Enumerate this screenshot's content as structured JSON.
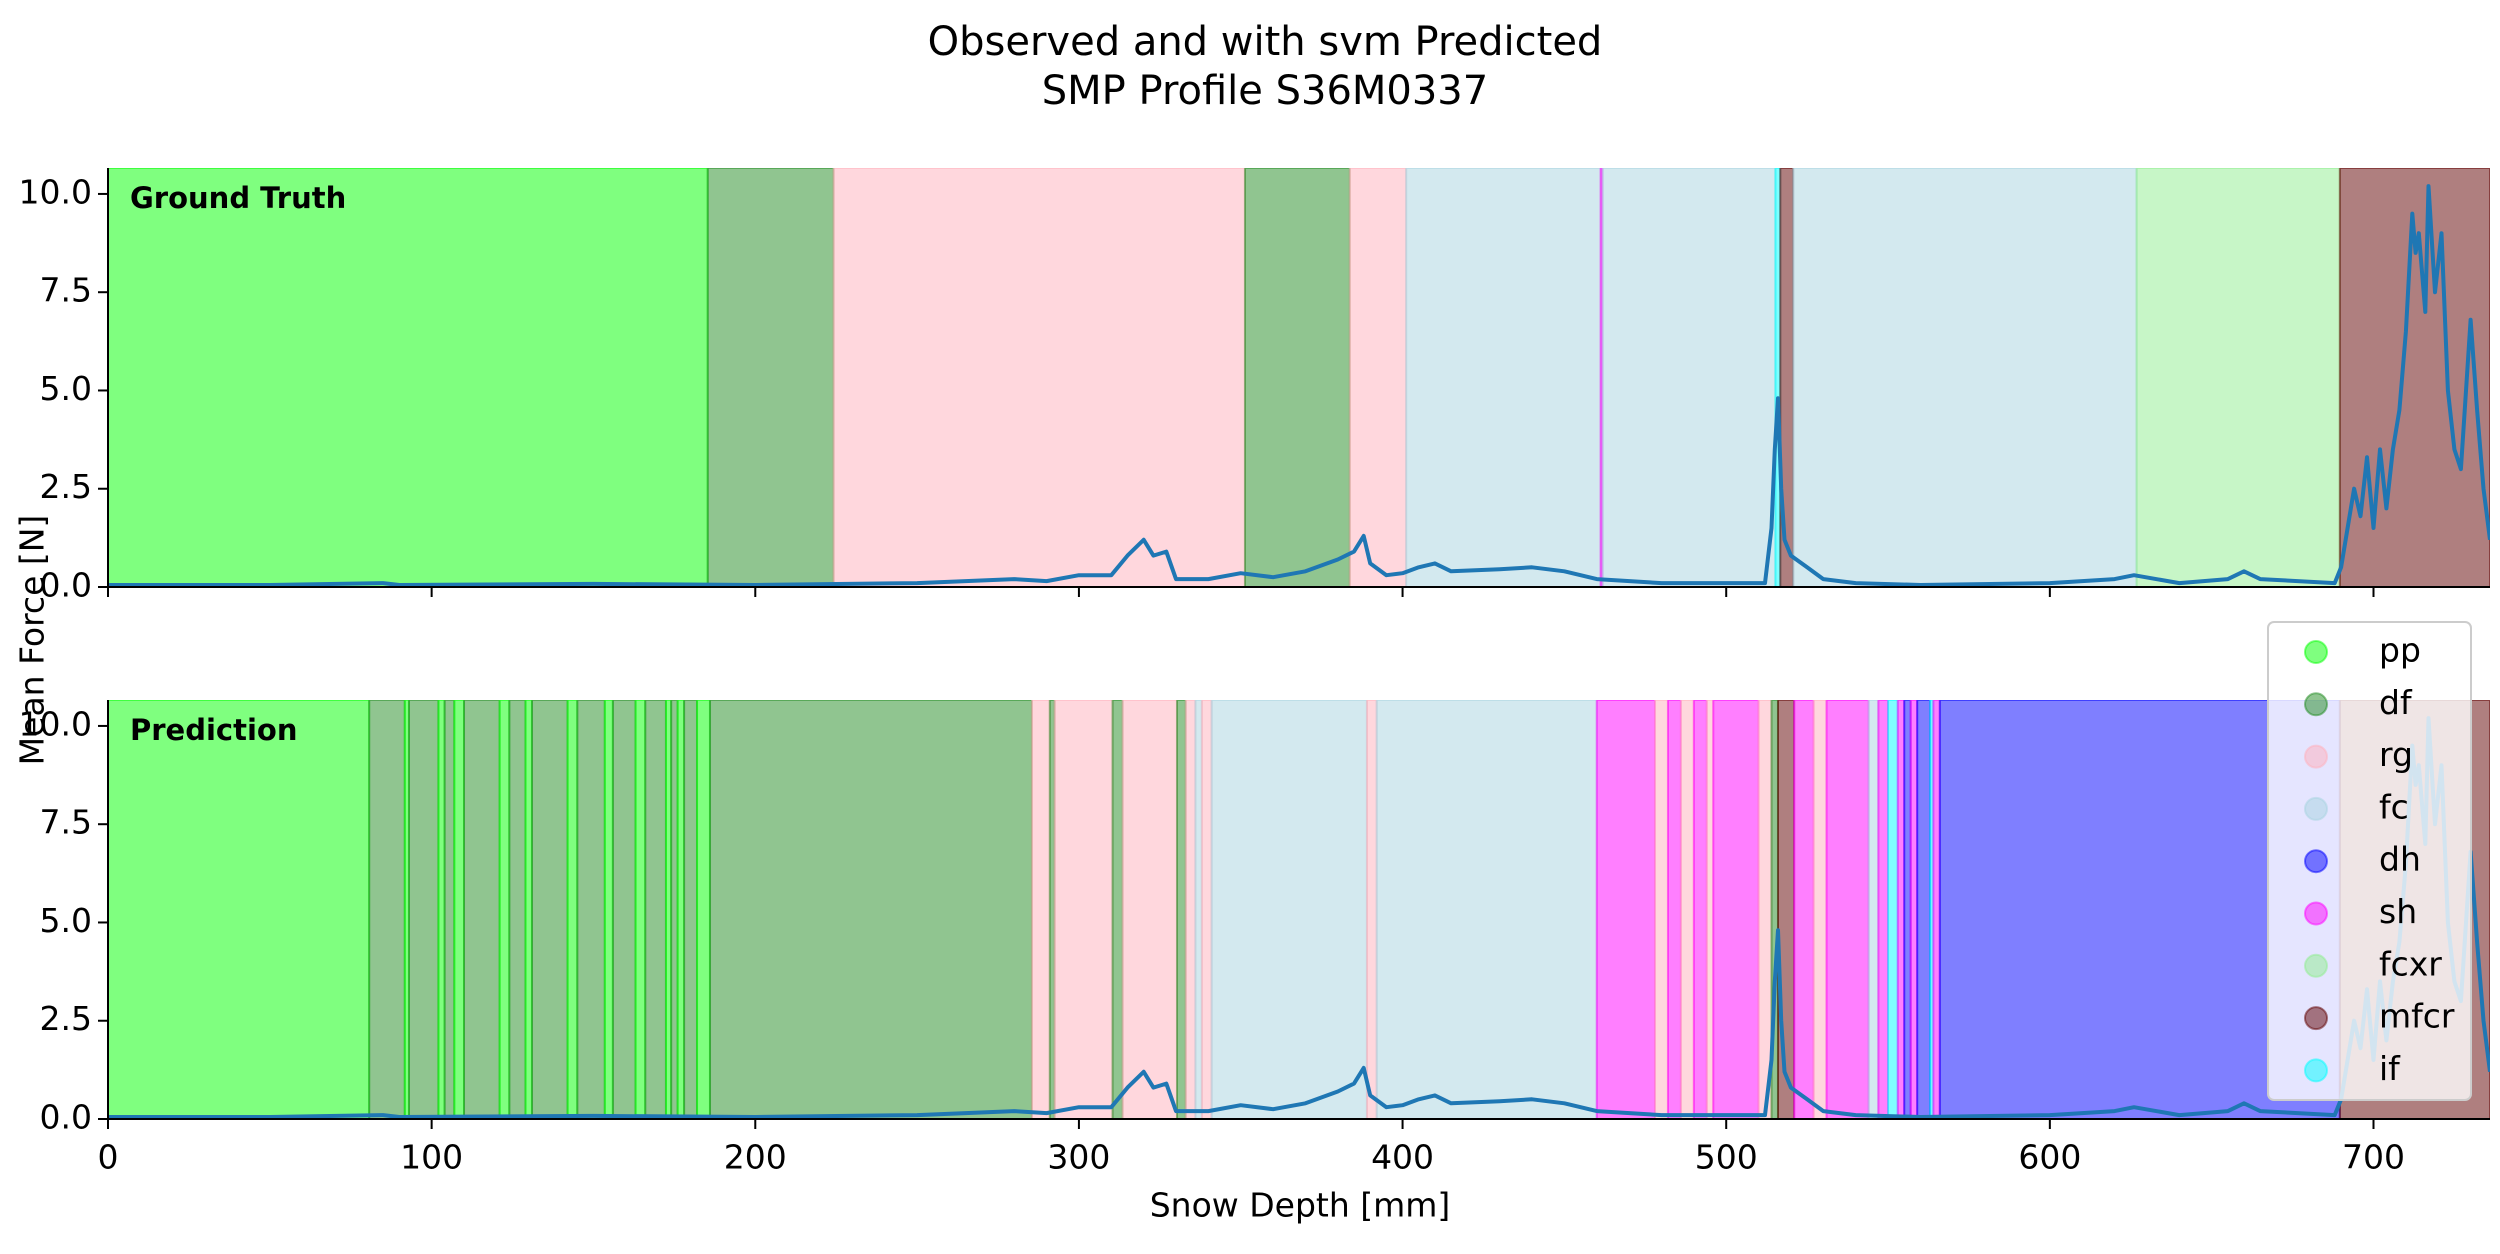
{
  "chart_data": {
    "type": "line",
    "title": "Observed and with svm Predicted",
    "subtitle": "SMP Profile S36M0337",
    "x_label": "Snow Depth [mm]",
    "y_label": "Mean Force [N]",
    "xlim": [
      0,
      736
    ],
    "xticks": [
      0,
      100,
      200,
      300,
      400,
      500,
      600,
      700
    ],
    "ylim": [
      0,
      10.66
    ],
    "yticks": [
      {
        "value": 0,
        "label": "0.0"
      },
      {
        "value": 2.5,
        "label": "2.5"
      },
      {
        "value": 5,
        "label": "5.0"
      },
      {
        "value": 7.5,
        "label": "7.5"
      },
      {
        "value": 10,
        "label": "10.0"
      }
    ],
    "alpha": 0.5,
    "legend": "upper right",
    "classes": [
      {
        "name": "pp",
        "color": "#00ff00"
      },
      {
        "name": "df",
        "color": "#228b22"
      },
      {
        "name": "rg",
        "color": "#ffb0bb"
      },
      {
        "name": "fc",
        "color": "#a8d4e0"
      },
      {
        "name": "dh",
        "color": "#0000ff"
      },
      {
        "name": "sh",
        "color": "#ff00ff"
      },
      {
        "name": "fcxr",
        "color": "#90ee90"
      },
      {
        "name": "mfcr",
        "color": "#600000"
      },
      {
        "name": "if",
        "color": "#00ffff"
      }
    ],
    "series": [
      {
        "name": "Mean Force",
        "color": "#1f77b4",
        "x": [
          0,
          50,
          85,
          90,
          150,
          200,
          250,
          280,
          290,
          300,
          310,
          315,
          320,
          323,
          327,
          330,
          340,
          350,
          360,
          370,
          380,
          385,
          388,
          390,
          395,
          400,
          405,
          410,
          415,
          430,
          440,
          450,
          460,
          480,
          500,
          512,
          514,
          515,
          516,
          517,
          518,
          520,
          525,
          530,
          540,
          560,
          600,
          620,
          626,
          640,
          655,
          660,
          665,
          688,
          690,
          692,
          694,
          696,
          698,
          700,
          702,
          704,
          706,
          708,
          710,
          712,
          713,
          714,
          716,
          717,
          719,
          721,
          723,
          725,
          727,
          729,
          730,
          732,
          734,
          736
        ],
        "values": [
          0.05,
          0.05,
          0.1,
          0.05,
          0.08,
          0.05,
          0.1,
          0.2,
          0.15,
          0.3,
          0.3,
          0.8,
          1.2,
          0.8,
          0.9,
          0.2,
          0.2,
          0.35,
          0.25,
          0.4,
          0.7,
          0.9,
          1.3,
          0.6,
          0.3,
          0.35,
          0.5,
          0.6,
          0.4,
          0.45,
          0.5,
          0.4,
          0.2,
          0.1,
          0.1,
          0.1,
          1.5,
          3.5,
          4.8,
          2.5,
          1.2,
          0.8,
          0.5,
          0.2,
          0.1,
          0.05,
          0.1,
          0.2,
          0.3,
          0.1,
          0.2,
          0.4,
          0.2,
          0.1,
          0.5,
          1.5,
          2.5,
          1.8,
          3.3,
          1.5,
          3.5,
          2.0,
          3.5,
          4.5,
          6.5,
          9.5,
          8.5,
          9.0,
          7.0,
          10.2,
          7.5,
          9.0,
          5.0,
          3.5,
          3.0,
          5.5,
          6.8,
          4.5,
          2.5,
          1.2
        ]
      }
    ],
    "panels": [
      {
        "label": "Ground Truth",
        "segments": [
          {
            "start": 0,
            "end": 185.3,
            "class": "pp"
          },
          {
            "start": 185.3,
            "end": 224.2,
            "class": "df"
          },
          {
            "start": 224.2,
            "end": 351.3,
            "class": "rg"
          },
          {
            "start": 351.3,
            "end": 383.7,
            "class": "df"
          },
          {
            "start": 383.7,
            "end": 401.1,
            "class": "rg"
          },
          {
            "start": 401.1,
            "end": 461.2,
            "class": "fc"
          },
          {
            "start": 461.2,
            "end": 461.8,
            "class": "sh"
          },
          {
            "start": 461.8,
            "end": 515.2,
            "class": "fc"
          },
          {
            "start": 515.2,
            "end": 516.7,
            "class": "if"
          },
          {
            "start": 516.7,
            "end": 520.7,
            "class": "mfcr"
          },
          {
            "start": 520.7,
            "end": 626.8,
            "class": "fc"
          },
          {
            "start": 626.8,
            "end": 689.6,
            "class": "fcxr"
          },
          {
            "start": 689.6,
            "end": 736,
            "class": "mfcr"
          }
        ]
      },
      {
        "label": "Prediction",
        "segments": [
          {
            "start": 0,
            "end": 80.7,
            "class": "pp"
          },
          {
            "start": 80.7,
            "end": 91.7,
            "class": "df"
          },
          {
            "start": 91.7,
            "end": 93,
            "class": "pp"
          },
          {
            "start": 93,
            "end": 102.1,
            "class": "df"
          },
          {
            "start": 102.1,
            "end": 104,
            "class": "pp"
          },
          {
            "start": 104,
            "end": 107,
            "class": "df"
          },
          {
            "start": 107,
            "end": 110,
            "class": "pp"
          },
          {
            "start": 110,
            "end": 121,
            "class": "df"
          },
          {
            "start": 121,
            "end": 124,
            "class": "pp"
          },
          {
            "start": 124,
            "end": 129,
            "class": "df"
          },
          {
            "start": 129,
            "end": 131,
            "class": "pp"
          },
          {
            "start": 131,
            "end": 142,
            "class": "df"
          },
          {
            "start": 142,
            "end": 145,
            "class": "pp"
          },
          {
            "start": 145,
            "end": 153.5,
            "class": "df"
          },
          {
            "start": 153.5,
            "end": 156,
            "class": "pp"
          },
          {
            "start": 156,
            "end": 163,
            "class": "df"
          },
          {
            "start": 163,
            "end": 166,
            "class": "pp"
          },
          {
            "start": 166,
            "end": 172.4,
            "class": "df"
          },
          {
            "start": 172.4,
            "end": 174,
            "class": "pp"
          },
          {
            "start": 174,
            "end": 176,
            "class": "df"
          },
          {
            "start": 176,
            "end": 178,
            "class": "pp"
          },
          {
            "start": 178,
            "end": 182,
            "class": "df"
          },
          {
            "start": 182,
            "end": 186,
            "class": "pp"
          },
          {
            "start": 186,
            "end": 285.5,
            "class": "df"
          },
          {
            "start": 285.5,
            "end": 291,
            "class": "rg"
          },
          {
            "start": 291,
            "end": 292.5,
            "class": "df"
          },
          {
            "start": 292.5,
            "end": 310.4,
            "class": "rg"
          },
          {
            "start": 310.4,
            "end": 313.5,
            "class": "df"
          },
          {
            "start": 313.5,
            "end": 330.3,
            "class": "rg"
          },
          {
            "start": 330.3,
            "end": 333,
            "class": "df"
          },
          {
            "start": 333,
            "end": 336,
            "class": "rg"
          },
          {
            "start": 336,
            "end": 338,
            "class": "fc"
          },
          {
            "start": 338,
            "end": 341,
            "class": "rg"
          },
          {
            "start": 341,
            "end": 389,
            "class": "fc"
          },
          {
            "start": 389,
            "end": 392,
            "class": "rg"
          },
          {
            "start": 392,
            "end": 460,
            "class": "fc"
          },
          {
            "start": 460,
            "end": 478,
            "class": "sh"
          },
          {
            "start": 478,
            "end": 482,
            "class": "rg"
          },
          {
            "start": 482,
            "end": 486,
            "class": "sh"
          },
          {
            "start": 486,
            "end": 490,
            "class": "rg"
          },
          {
            "start": 490,
            "end": 494,
            "class": "sh"
          },
          {
            "start": 494,
            "end": 496,
            "class": "rg"
          },
          {
            "start": 496,
            "end": 510,
            "class": "sh"
          },
          {
            "start": 510,
            "end": 514,
            "class": "rg"
          },
          {
            "start": 514,
            "end": 516,
            "class": "df"
          },
          {
            "start": 516,
            "end": 521,
            "class": "mfcr"
          },
          {
            "start": 521,
            "end": 527,
            "class": "sh"
          },
          {
            "start": 527,
            "end": 531,
            "class": "rg"
          },
          {
            "start": 531,
            "end": 544,
            "class": "sh"
          },
          {
            "start": 544,
            "end": 547,
            "class": "fc"
          },
          {
            "start": 547,
            "end": 550,
            "class": "sh"
          },
          {
            "start": 550,
            "end": 553,
            "class": "if"
          },
          {
            "start": 553,
            "end": 555,
            "class": "sh"
          },
          {
            "start": 555,
            "end": 557,
            "class": "dh"
          },
          {
            "start": 557,
            "end": 559,
            "class": "sh"
          },
          {
            "start": 559,
            "end": 563,
            "class": "dh"
          },
          {
            "start": 563,
            "end": 564,
            "class": "if"
          },
          {
            "start": 564,
            "end": 566,
            "class": "sh"
          },
          {
            "start": 566,
            "end": 689.6,
            "class": "dh"
          },
          {
            "start": 689.6,
            "end": 736,
            "class": "mfcr"
          }
        ]
      }
    ]
  }
}
